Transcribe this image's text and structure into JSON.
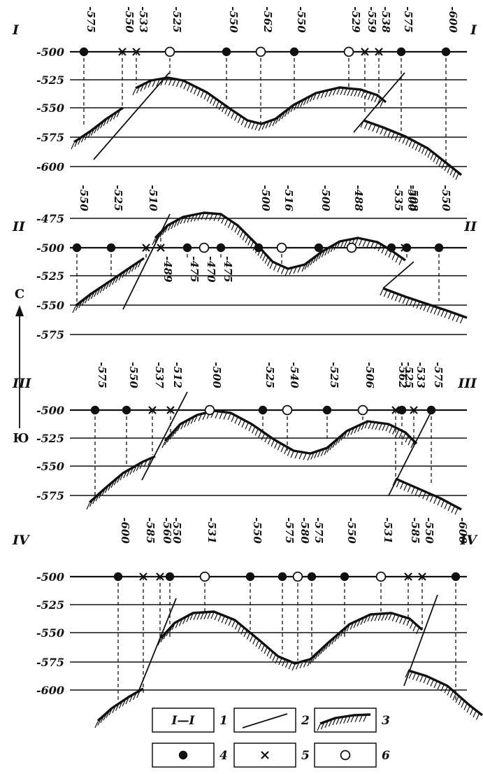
{
  "figure": {
    "compass": {
      "north": "С",
      "south": "Ю"
    },
    "legend": [
      {
        "num": "1",
        "symbol": "section-line",
        "text": "I—I"
      },
      {
        "num": "2",
        "symbol": "fault-line",
        "text": ""
      },
      {
        "num": "3",
        "symbol": "hatched-surface",
        "text": ""
      },
      {
        "num": "4",
        "symbol": "filled-circle",
        "text": ""
      },
      {
        "num": "5",
        "symbol": "cross",
        "text": ""
      },
      {
        "num": "6",
        "symbol": "open-circle",
        "text": ""
      }
    ],
    "colors": {
      "ink": "#111111",
      "background": "#ffffff"
    }
  },
  "sections": [
    {
      "name": "I",
      "levels": [
        "-500",
        "-525",
        "-550",
        "-575",
        "-600"
      ],
      "wells": [
        {
          "v": "-575",
          "m": "dot"
        },
        {
          "v": "-550",
          "m": "cross"
        },
        {
          "v": "-533",
          "m": "cross"
        },
        {
          "v": "-525",
          "m": "circle"
        },
        {
          "v": "-550",
          "m": "dot"
        },
        {
          "v": "-562",
          "m": "circle"
        },
        {
          "v": "-550",
          "m": "dot"
        },
        {
          "v": "-529",
          "m": "circle"
        },
        {
          "v": "-559",
          "m": "cross"
        },
        {
          "v": "-538",
          "m": "cross"
        },
        {
          "v": "-575",
          "m": "dot"
        },
        {
          "v": "-600",
          "m": "dot"
        }
      ],
      "below_labels": []
    },
    {
      "name": "II",
      "levels": [
        "-475",
        "-500",
        "-525",
        "-550",
        "-575"
      ],
      "wells": [
        {
          "v": "-550",
          "m": "dot"
        },
        {
          "v": "-525",
          "m": "dot"
        },
        {
          "v": "-510",
          "m": "cross"
        },
        {
          "v": "",
          "m": "cross"
        },
        {
          "v": "",
          "m": "dot"
        },
        {
          "v": "",
          "m": "circle"
        },
        {
          "v": "",
          "m": "dot"
        },
        {
          "v": "-500",
          "m": "dot"
        },
        {
          "v": "-516",
          "m": "circle"
        },
        {
          "v": "-500",
          "m": "dot"
        },
        {
          "v": "-488",
          "m": "circle"
        },
        {
          "v": "-535",
          "m": "dot"
        },
        {
          "v": "-500",
          "m": "dot"
        },
        {
          "v": "-508",
          "m": "cross"
        },
        {
          "v": "-550",
          "m": "dot"
        }
      ],
      "below_labels": [
        "-489",
        "-475",
        "-470",
        "-475"
      ]
    },
    {
      "name": "III",
      "levels": [
        "-500",
        "-525",
        "-550",
        "-575"
      ],
      "wells": [
        {
          "v": "-575",
          "m": "dot"
        },
        {
          "v": "-550",
          "m": "dot"
        },
        {
          "v": "-537",
          "m": "cross"
        },
        {
          "v": "-512",
          "m": "cross"
        },
        {
          "v": "-500",
          "m": "circle"
        },
        {
          "v": "-525",
          "m": "dot"
        },
        {
          "v": "-540",
          "m": "circle"
        },
        {
          "v": "-525",
          "m": "dot"
        },
        {
          "v": "-506",
          "m": "circle"
        },
        {
          "v": "-562",
          "m": "cross"
        },
        {
          "v": "-525",
          "m": "dot"
        },
        {
          "v": "-533",
          "m": "cross"
        },
        {
          "v": "-575",
          "m": "dot"
        }
      ],
      "below_labels": []
    },
    {
      "name": "IV",
      "levels": [
        "-500",
        "-525",
        "-550",
        "-575",
        "-600"
      ],
      "wells": [
        {
          "v": "-600",
          "m": "dot"
        },
        {
          "v": "-585",
          "m": "cross"
        },
        {
          "v": "-560",
          "m": "cross"
        },
        {
          "v": "-550",
          "m": "dot"
        },
        {
          "v": "-531",
          "m": "circle"
        },
        {
          "v": "-550",
          "m": "dot"
        },
        {
          "v": "-575",
          "m": "dot"
        },
        {
          "v": "-580",
          "m": "circle"
        },
        {
          "v": "-575",
          "m": "dot"
        },
        {
          "v": "-550",
          "m": "dot"
        },
        {
          "v": "-531",
          "m": "circle"
        },
        {
          "v": "-585",
          "m": "cross"
        },
        {
          "v": "-550",
          "m": "cross"
        },
        {
          "v": "-600",
          "m": "dot"
        }
      ],
      "below_labels": []
    }
  ]
}
